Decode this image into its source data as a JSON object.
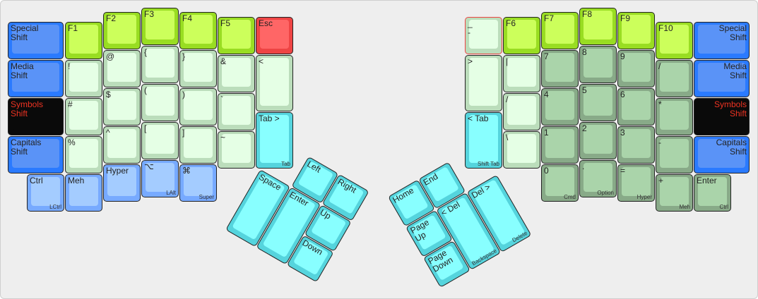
{
  "colors": {
    "mod": {
      "outer": "#2a7aff",
      "inner": "#5a93f7",
      "text": "#222222"
    },
    "sym": {
      "outer": "#0a0a0a",
      "inner": "#0a0a0a",
      "text": "#ee3322"
    },
    "fn": {
      "outer": "#99dd22",
      "inner": "#ccff5b",
      "text": "#222222"
    },
    "esc": {
      "outer": "#ee4444",
      "inner": "#ff6666",
      "text": "#222222"
    },
    "light": {
      "outer": "#bbddbb",
      "inner": "#e5ffe5",
      "text": "#222222"
    },
    "num": {
      "outer": "#88aa88",
      "inner": "#aad4aa",
      "text": "#222222"
    },
    "cyan": {
      "outer": "#55d4dd",
      "inner": "#88ffff",
      "text": "#222222"
    },
    "lblue": {
      "outer": "#77aaff",
      "inner": "#a4ccff",
      "text": "#222222"
    }
  },
  "left_hand": {
    "keys": [
      {
        "label": "Special\nShift",
        "color": "mod"
      },
      {
        "label": "Media\nShift",
        "color": "mod"
      },
      {
        "label": "Symbols\nShift",
        "color": "sym"
      },
      {
        "label": "Capitals\nShift",
        "color": "mod"
      },
      {
        "label": "Ctrl",
        "sublabel": "LCtrl",
        "color": "lblue"
      },
      {
        "label": "F1",
        "color": "fn"
      },
      {
        "label": "!",
        "color": "light"
      },
      {
        "label": "#",
        "color": "light"
      },
      {
        "label": "%",
        "color": "light"
      },
      {
        "label": "Meh",
        "color": "lblue"
      },
      {
        "label": "F2",
        "color": "fn"
      },
      {
        "label": "@",
        "color": "light"
      },
      {
        "label": "$",
        "color": "light"
      },
      {
        "label": "^",
        "color": "light"
      },
      {
        "label": "Hyper",
        "color": "lblue"
      },
      {
        "label": "F3",
        "color": "fn"
      },
      {
        "label": "{",
        "color": "light"
      },
      {
        "label": "(",
        "color": "light"
      },
      {
        "label": "[",
        "color": "light"
      },
      {
        "label": "⌥",
        "sublabel": "LAlt",
        "color": "lblue"
      },
      {
        "label": "F4",
        "color": "fn"
      },
      {
        "label": "}",
        "color": "light"
      },
      {
        "label": ")",
        "color": "light"
      },
      {
        "label": "]",
        "color": "light"
      },
      {
        "label": "⌘",
        "sublabel": "Super",
        "color": "lblue"
      },
      {
        "label": "F5",
        "color": "fn"
      },
      {
        "label": "&",
        "color": "light"
      },
      {
        "label": "`",
        "color": "light"
      },
      {
        "label": "~",
        "color": "light"
      },
      {
        "label": "Esc",
        "color": "esc"
      },
      {
        "label": "<",
        "color": "light"
      },
      {
        "label": "Tab >",
        "sublabel": "Tab",
        "color": "cyan"
      }
    ]
  },
  "right_hand": {
    "keys": [
      {
        "label": "_\n-",
        "color": "light",
        "highlighted": true
      },
      {
        "label": ">",
        "color": "light"
      },
      {
        "label": "< Tab",
        "sublabel": "Shift Tab",
        "color": "cyan"
      },
      {
        "label": "F6",
        "color": "fn"
      },
      {
        "label": "|",
        "color": "light"
      },
      {
        "label": "/",
        "color": "light"
      },
      {
        "label": "\\",
        "color": "light"
      },
      {
        "label": "F7",
        "color": "fn"
      },
      {
        "label": "7",
        "color": "num"
      },
      {
        "label": "4",
        "color": "num"
      },
      {
        "label": "1",
        "color": "num"
      },
      {
        "label": "0",
        "sublabel": "Cmd",
        "color": "num"
      },
      {
        "label": "F8",
        "color": "fn"
      },
      {
        "label": "8",
        "color": "num"
      },
      {
        "label": "5",
        "color": "num"
      },
      {
        "label": "2",
        "color": "num"
      },
      {
        "label": ".",
        "sublabel": "Option",
        "color": "num"
      },
      {
        "label": "F9",
        "color": "fn"
      },
      {
        "label": "9",
        "color": "num"
      },
      {
        "label": "6",
        "color": "num"
      },
      {
        "label": "3",
        "color": "num"
      },
      {
        "label": "=",
        "sublabel": "Hyper",
        "color": "num"
      },
      {
        "label": "F10",
        "color": "fn"
      },
      {
        "label": "/",
        "color": "num"
      },
      {
        "label": "*",
        "color": "num"
      },
      {
        "label": "-",
        "color": "num"
      },
      {
        "label": "+",
        "sublabel": "Meh",
        "color": "num"
      },
      {
        "label": "Special\nShift",
        "color": "mod"
      },
      {
        "label": "Media\nShift",
        "color": "mod"
      },
      {
        "label": "Symbols\nShift",
        "color": "sym"
      },
      {
        "label": "Capitals\nShift",
        "color": "mod"
      },
      {
        "label": "Enter",
        "sublabel": "Ctrl",
        "color": "num"
      }
    ]
  },
  "left_thumb": {
    "keys": [
      {
        "label": "Left",
        "color": "cyan"
      },
      {
        "label": "Right",
        "color": "cyan"
      },
      {
        "label": "Space",
        "color": "cyan"
      },
      {
        "label": "Enter",
        "color": "cyan"
      },
      {
        "label": "Up",
        "color": "cyan"
      },
      {
        "label": "Down",
        "color": "cyan"
      }
    ]
  },
  "right_thumb": {
    "keys": [
      {
        "label": "Home",
        "color": "cyan"
      },
      {
        "label": "End",
        "color": "cyan"
      },
      {
        "label": "Page\nUp",
        "color": "cyan"
      },
      {
        "label": "Page\nDown",
        "color": "cyan"
      },
      {
        "label": "< Del",
        "sublabel": "Backspace",
        "color": "cyan"
      },
      {
        "label": "Del >",
        "sublabel": "Delete",
        "color": "cyan"
      }
    ]
  }
}
